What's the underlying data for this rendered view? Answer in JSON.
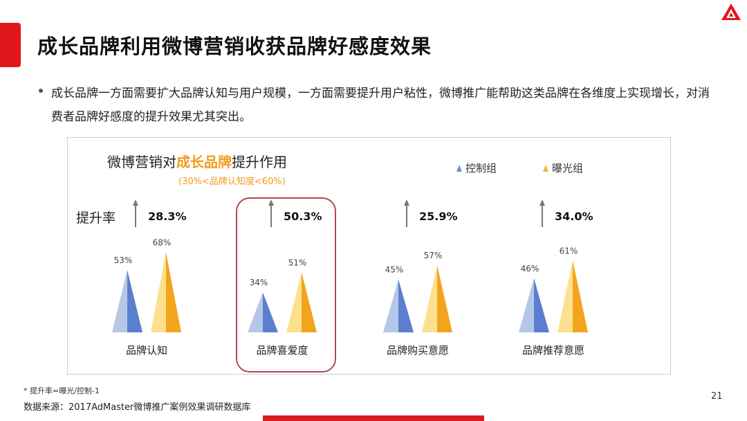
{
  "slide": {
    "title": "成长品牌利用微博营销收获品牌好感度效果",
    "bullet": "成长品牌一方面需要扩大品牌认知与用户规模，一方面需要提升用户粘性，微博推广能帮助这类品牌在各维度上实现增长，对消费者品牌好感度的提升效果尤其突出。",
    "footnote": "* 提升率=曝光/控制-1",
    "source": "数据来源：2017AdMaster微博推广案例效果调研数据库",
    "page_number": "21",
    "accent_color": "#e0161b"
  },
  "chart_data": {
    "type": "bar",
    "title_prefix": "微博营销对",
    "title_highlight": "成长品牌",
    "title_suffix": "提升作用",
    "subtitle": "(30%<品牌认知度<60%)",
    "rate_label": "提升率",
    "legend": [
      "控制组",
      "曝光组"
    ],
    "categories": [
      "品牌认知",
      "品牌喜爱度",
      "品牌购买意愿",
      "品牌推荐意愿"
    ],
    "series": [
      {
        "name": "控制组",
        "values": [
          53,
          34,
          45,
          46
        ],
        "labels": [
          "53%",
          "34%",
          "45%",
          "46%"
        ],
        "color_light": "#b4c7e7",
        "color_dark": "#5b7fce"
      },
      {
        "name": "曝光组",
        "values": [
          68,
          51,
          57,
          61
        ],
        "labels": [
          "68%",
          "51%",
          "57%",
          "61%"
        ],
        "color_light": "#fde08f",
        "color_dark": "#f2a51c"
      }
    ],
    "lift_rates": [
      "28.3%",
      "50.3%",
      "25.9%",
      "34.0%"
    ],
    "highlighted_category": "品牌喜爱度"
  }
}
